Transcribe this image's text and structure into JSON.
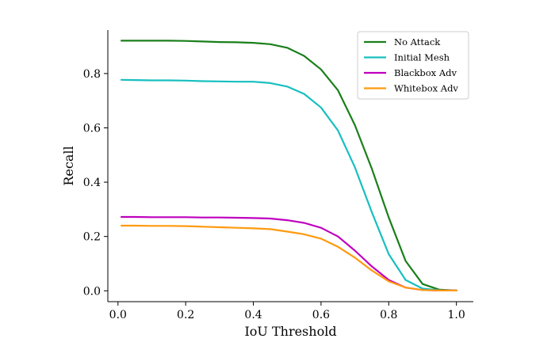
{
  "chart_data": {
    "type": "line",
    "title": "",
    "xlabel": "IoU Threshold",
    "ylabel": "Recall",
    "xlim": [
      -0.03,
      1.05
    ],
    "ylim": [
      -0.04,
      0.96
    ],
    "xticks": [
      0.0,
      0.2,
      0.4,
      0.6,
      0.8,
      1.0
    ],
    "xtick_labels": [
      "0.0",
      "0.2",
      "0.4",
      "0.6",
      "0.8",
      "1.0"
    ],
    "yticks": [
      0.0,
      0.2,
      0.4,
      0.6,
      0.8
    ],
    "ytick_labels": [
      "0.0",
      "0.2",
      "0.4",
      "0.6",
      "0.8"
    ],
    "grid": false,
    "legend_position": "top-right",
    "x": [
      0.01,
      0.05,
      0.1,
      0.15,
      0.2,
      0.25,
      0.3,
      0.35,
      0.4,
      0.45,
      0.5,
      0.55,
      0.6,
      0.65,
      0.7,
      0.75,
      0.8,
      0.85,
      0.9,
      0.95,
      1.0
    ],
    "series": [
      {
        "name": "No Attack",
        "color": "#1a7f1a",
        "values": [
          0.921,
          0.921,
          0.921,
          0.921,
          0.92,
          0.918,
          0.916,
          0.915,
          0.913,
          0.908,
          0.895,
          0.865,
          0.815,
          0.738,
          0.61,
          0.45,
          0.27,
          0.11,
          0.025,
          0.004,
          0.001
        ]
      },
      {
        "name": "Initial Mesh",
        "color": "#17bfbf",
        "values": [
          0.777,
          0.776,
          0.775,
          0.775,
          0.774,
          0.772,
          0.771,
          0.77,
          0.77,
          0.765,
          0.752,
          0.725,
          0.675,
          0.59,
          0.455,
          0.29,
          0.135,
          0.04,
          0.008,
          0.002,
          0.001
        ]
      },
      {
        "name": "Blackbox Adv",
        "color": "#bf00bf",
        "values": [
          0.272,
          0.272,
          0.271,
          0.271,
          0.271,
          0.27,
          0.27,
          0.269,
          0.268,
          0.266,
          0.26,
          0.25,
          0.232,
          0.2,
          0.148,
          0.09,
          0.04,
          0.012,
          0.003,
          0.001,
          0.001
        ]
      },
      {
        "name": "Whitebox Adv",
        "color": "#ff9a0e",
        "values": [
          0.24,
          0.24,
          0.239,
          0.239,
          0.238,
          0.236,
          0.234,
          0.232,
          0.23,
          0.227,
          0.218,
          0.208,
          0.192,
          0.162,
          0.122,
          0.075,
          0.035,
          0.012,
          0.003,
          0.001,
          0.001
        ]
      }
    ]
  }
}
